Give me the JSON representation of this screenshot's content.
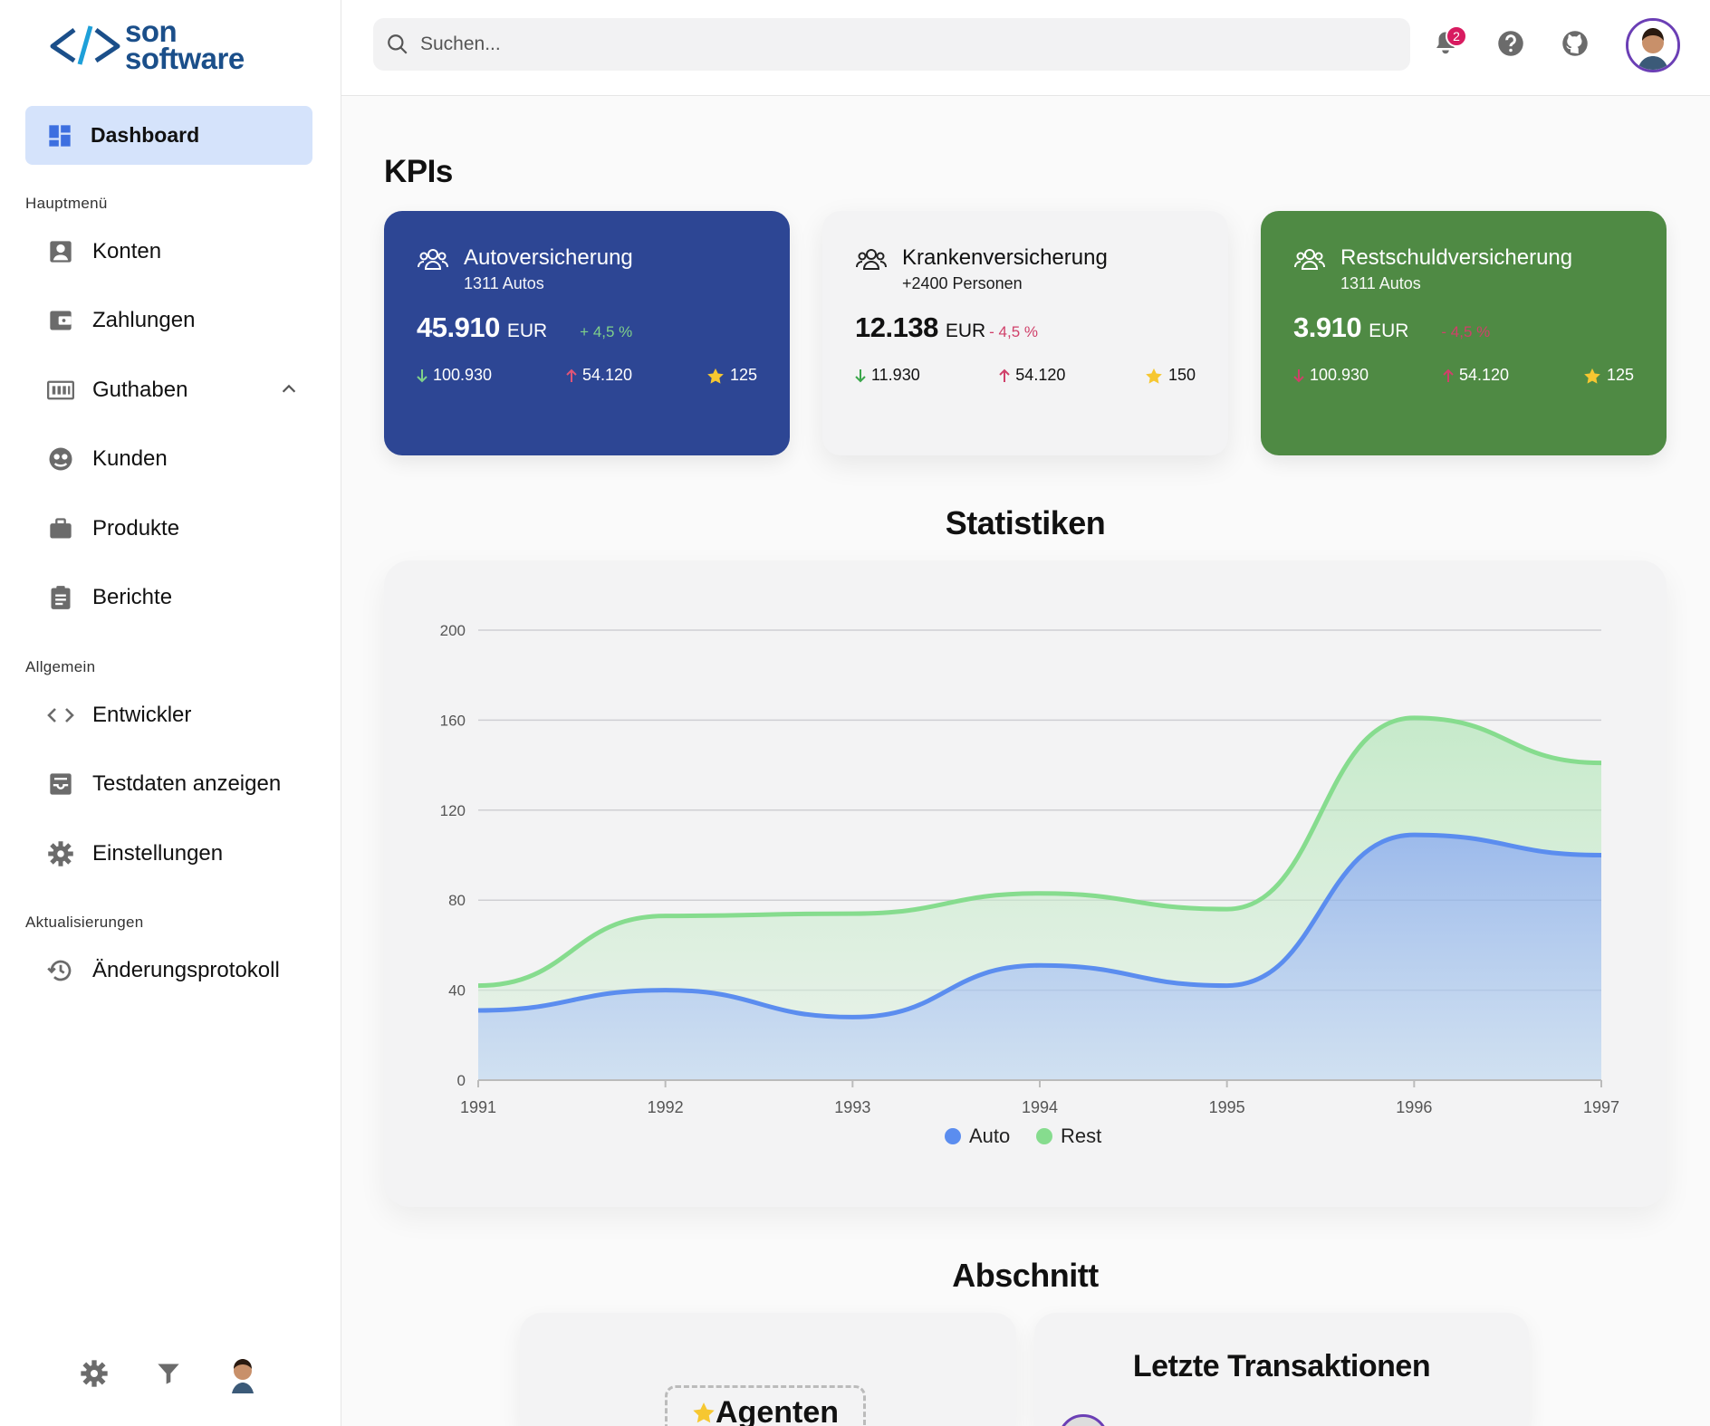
{
  "logo": {
    "line1": "son",
    "line2": "software"
  },
  "sidebar": {
    "active": {
      "label": "Dashboard",
      "icon": "dashboard-icon"
    },
    "sections": [
      {
        "title": "Hauptmenü",
        "items": [
          {
            "label": "Konten",
            "icon": "account-box-icon"
          },
          {
            "label": "Zahlungen",
            "icon": "wallet-icon"
          },
          {
            "label": "Guthaben",
            "icon": "balance-icon",
            "expanded": true
          },
          {
            "label": "Kunden",
            "icon": "customer-face-icon"
          },
          {
            "label": "Produkte",
            "icon": "briefcase-icon"
          },
          {
            "label": "Berichte",
            "icon": "clipboard-icon"
          }
        ]
      },
      {
        "title": "Allgemein",
        "items": [
          {
            "label": "Entwickler",
            "icon": "code-icon"
          },
          {
            "label": "Testdaten anzeigen",
            "icon": "inbox-icon"
          },
          {
            "label": "Einstellungen",
            "icon": "gear-icon"
          }
        ]
      },
      {
        "title": "Aktualisierungen",
        "items": [
          {
            "label": "Änderungsprotokoll",
            "icon": "history-icon"
          }
        ]
      }
    ]
  },
  "header": {
    "search_placeholder": "Suchen...",
    "notifications": "2"
  },
  "kpis_title": "KPIs",
  "kpis": [
    {
      "title": "Autoversicherung",
      "subtitle": "1311 Autos",
      "value": "45.910",
      "currency": "EUR",
      "change": "+ 4,5 %",
      "down": "100.930",
      "up": "54.120",
      "stars": "125",
      "theme": "#2d4694"
    },
    {
      "title": "Krankenversicherung",
      "subtitle": "+2400 Personen",
      "value": "12.138",
      "currency": "EUR",
      "change": "- 4,5 %",
      "down": "11.930",
      "up": "54.120",
      "stars": "150",
      "theme": "#f3f3f4"
    },
    {
      "title": "Restschuldversicherung",
      "subtitle": "1311 Autos",
      "value": "3.910",
      "currency": "EUR",
      "change": "- 4,5 %",
      "down": "100.930",
      "up": "54.120",
      "stars": "125",
      "theme": "#4f8a44"
    }
  ],
  "stats_title": "Statistiken",
  "chart_data": {
    "type": "area",
    "x": [
      1991,
      1992,
      1993,
      1994,
      1995,
      1996,
      1997
    ],
    "series": [
      {
        "name": "Auto",
        "values": [
          31,
          40,
          28,
          51,
          42,
          109,
          100
        ],
        "color": "#5b8def"
      },
      {
        "name": "Rest",
        "values": [
          42,
          73,
          74,
          83,
          76,
          161,
          141
        ],
        "color": "#86dc8e"
      }
    ],
    "yticks": [
      0,
      40,
      80,
      120,
      160,
      200
    ],
    "ylim": [
      0,
      200
    ],
    "grid": true,
    "legend": "bottom"
  },
  "section_title": "Abschnitt",
  "agents_label": "Agenten",
  "transactions_title": "Letzte Transaktionen"
}
